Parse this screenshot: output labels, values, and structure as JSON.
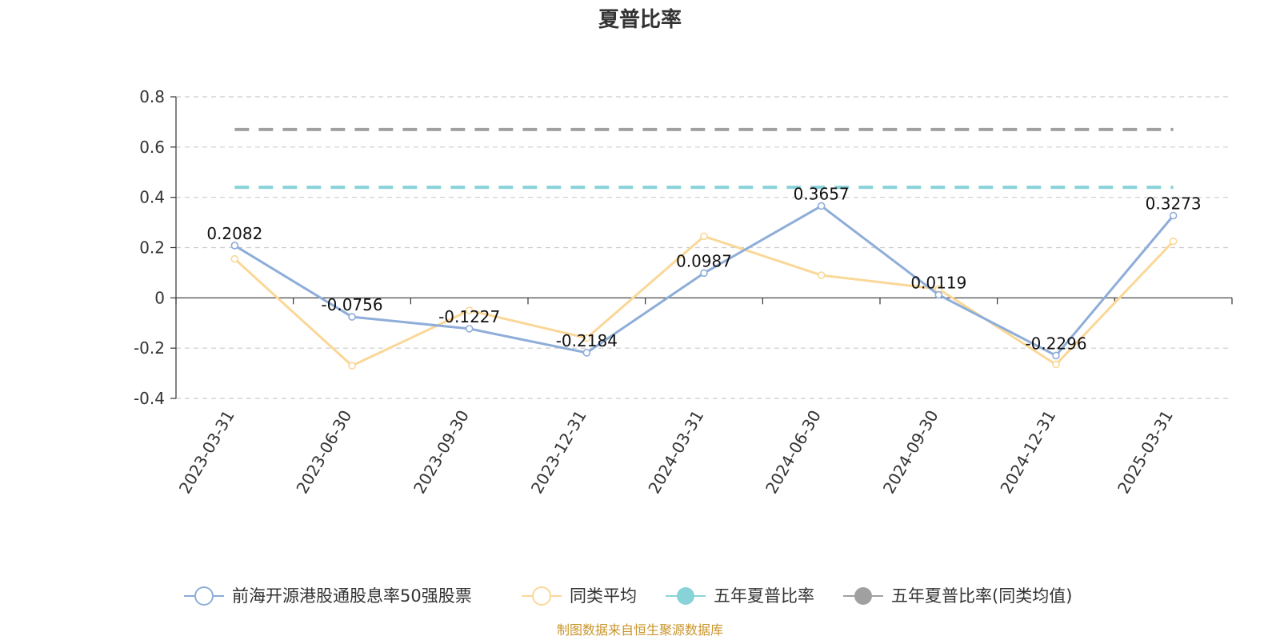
{
  "chart_data": {
    "type": "line",
    "title": "夏普比率",
    "source": "制图数据来自恒生聚源数据库",
    "categories": [
      "2023-03-31",
      "2023-06-30",
      "2023-09-30",
      "2023-12-31",
      "2024-03-31",
      "2024-06-30",
      "2024-09-30",
      "2024-12-31",
      "2025-03-31"
    ],
    "ylim": [
      -0.4,
      0.8
    ],
    "yticks": [
      -0.4,
      -0.2,
      0,
      0.2,
      0.4,
      0.6,
      0.8
    ],
    "ytick_labels": [
      "-0.4",
      "-0.2",
      "0",
      "0.2",
      "0.4",
      "0.6",
      "0.8"
    ],
    "grid": true,
    "legend_position": "bottom",
    "series": [
      {
        "name": "前海开源港股通股息率50强股票",
        "color": "#8eadd9",
        "marker": "hollow-circle",
        "values": [
          0.2082,
          -0.0756,
          -0.1227,
          -0.2184,
          0.0987,
          0.3657,
          0.0119,
          -0.2296,
          0.3273
        ],
        "labels": [
          "0.2082",
          "-0.0756",
          "-0.1227",
          "-0.2184",
          "0.0987",
          "0.3657",
          "0.0119",
          "-0.2296",
          "0.3273"
        ]
      },
      {
        "name": "同类平均",
        "color": "#fad797",
        "marker": "hollow-circle",
        "values": [
          0.155,
          -0.27,
          -0.05,
          -0.16,
          0.245,
          0.09,
          0.035,
          -0.265,
          0.225
        ]
      },
      {
        "name": "五年夏普比率",
        "color": "#88d3d8",
        "marker": "filled-circle",
        "style": "dashed",
        "value": 0.44
      },
      {
        "name": "五年夏普比率(同类均值)",
        "color": "#a0a0a0",
        "marker": "filled-circle",
        "style": "dashed",
        "value": 0.67
      }
    ]
  }
}
